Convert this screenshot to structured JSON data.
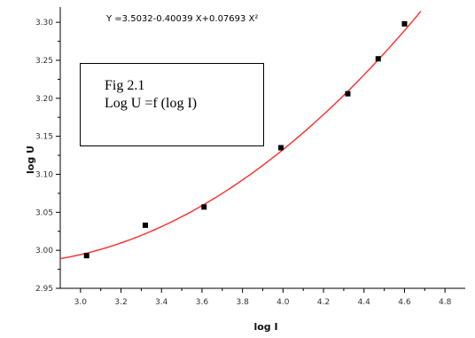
{
  "chart_data": {
    "type": "scatter",
    "xlabel": "log I",
    "ylabel": "log U",
    "xlim": [
      2.9,
      4.9
    ],
    "ylim": [
      2.95,
      3.32
    ],
    "x_ticks": [
      "3.0",
      "3.2",
      "3.4",
      "3.6",
      "3.8",
      "4.0",
      "4.2",
      "4.4",
      "4.6",
      "4.8"
    ],
    "y_ticks": [
      "2.95",
      "3.00",
      "3.05",
      "3.10",
      "3.15",
      "3.20",
      "3.25",
      "3.30"
    ],
    "equation": "Y =3.5032-0.40039 X+0.07693 X²",
    "fit": {
      "a": 3.5032,
      "b": -0.40039,
      "c": 0.07693,
      "x_from": 2.9,
      "x_to": 4.68
    },
    "series": [
      {
        "x": [
          3.03,
          3.32,
          3.61,
          3.99,
          4.32,
          4.47,
          4.6
        ],
        "y": [
          2.993,
          3.033,
          3.057,
          3.135,
          3.206,
          3.252,
          3.298
        ]
      }
    ],
    "colors": {
      "fit_line": "#ff2a2a",
      "marker": "#000000",
      "axis": "#000000"
    }
  },
  "annotation": {
    "line1": "Fig 2.1",
    "line2": "Log U =f (log I)"
  }
}
